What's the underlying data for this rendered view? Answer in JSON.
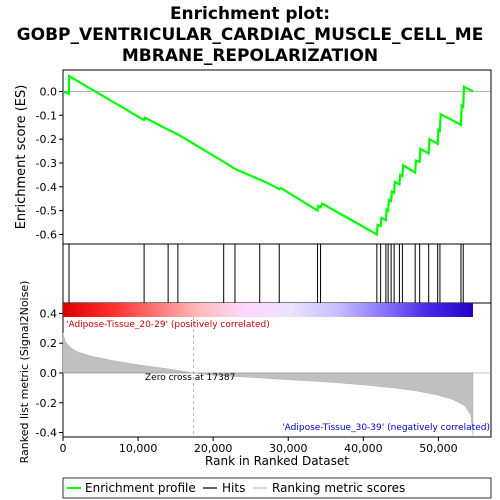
{
  "chart_data": {
    "type": "line",
    "title_lines": [
      "Enrichment plot:",
      "GOBP_VENTRICULAR_CARDIAC_MUSCLE_CELL_ME",
      "MBRANE_REPOLARIZATION"
    ],
    "es_panel": {
      "ylabel": "Enrichment score (ES)",
      "ylim": [
        -0.64,
        0.09
      ],
      "yticks": [
        0.0,
        -0.1,
        -0.2,
        -0.3,
        -0.4,
        -0.5,
        -0.6
      ],
      "ytick_labels": [
        "0.0",
        "-0.1",
        "-0.2",
        "-0.3",
        "-0.4",
        "-0.5",
        "-0.6"
      ],
      "color": "#00ff00",
      "points": [
        [
          0,
          0.0
        ],
        [
          800,
          -0.01
        ],
        [
          800,
          0.065
        ],
        [
          10800,
          -0.12
        ],
        [
          10900,
          -0.11
        ],
        [
          14000,
          -0.16
        ],
        [
          15300,
          -0.18
        ],
        [
          21400,
          -0.295
        ],
        [
          22900,
          -0.325
        ],
        [
          26200,
          -0.37
        ],
        [
          27300,
          -0.385
        ],
        [
          28800,
          -0.41
        ],
        [
          29000,
          -0.405
        ],
        [
          33900,
          -0.5
        ],
        [
          34000,
          -0.48
        ],
        [
          34300,
          -0.485
        ],
        [
          34500,
          -0.47
        ],
        [
          41800,
          -0.6
        ],
        [
          41900,
          -0.56
        ],
        [
          42300,
          -0.565
        ],
        [
          42400,
          -0.53
        ],
        [
          43000,
          -0.54
        ],
        [
          43100,
          -0.495
        ],
        [
          43300,
          -0.5
        ],
        [
          43400,
          -0.455
        ],
        [
          43700,
          -0.46
        ],
        [
          43800,
          -0.42
        ],
        [
          44100,
          -0.425
        ],
        [
          44200,
          -0.38
        ],
        [
          44800,
          -0.39
        ],
        [
          44900,
          -0.35
        ],
        [
          45200,
          -0.355
        ],
        [
          45300,
          -0.31
        ],
        [
          46900,
          -0.34
        ],
        [
          47000,
          -0.29
        ],
        [
          47500,
          -0.295
        ],
        [
          47600,
          -0.24
        ],
        [
          48700,
          -0.26
        ],
        [
          48800,
          -0.2
        ],
        [
          49900,
          -0.22
        ],
        [
          50000,
          -0.16
        ],
        [
          50200,
          -0.165
        ],
        [
          50300,
          -0.095
        ],
        [
          53000,
          -0.14
        ],
        [
          53100,
          -0.06
        ],
        [
          53300,
          -0.065
        ],
        [
          53400,
          0.02
        ],
        [
          54600,
          0.0
        ]
      ]
    },
    "hits": [
      800,
      10800,
      14000,
      15300,
      21400,
      22900,
      26200,
      28800,
      33900,
      34300,
      41800,
      42300,
      43000,
      43300,
      43700,
      44100,
      44800,
      45200,
      46900,
      47500,
      48700,
      49900,
      50200,
      53000,
      53300
    ],
    "color_bar_stops": [
      "#dd0000",
      "#ff2a2a",
      "#ff7070",
      "#ffbcbc",
      "#ffd8ff",
      "#ebe2ff",
      "#c8c0ff",
      "#8c78ff",
      "#4a28e8",
      "#2400c8"
    ],
    "metric_panel": {
      "ylabel": "Ranked list metric (Signal2Noise)",
      "ylim": [
        -0.43,
        0.47
      ],
      "yticks": [
        0.4,
        0.2,
        0.0,
        -0.2,
        -0.4
      ],
      "ytick_labels": [
        "0.4",
        "0.2",
        "0.0",
        "-0.2",
        "-0.4"
      ],
      "curve": [
        [
          0,
          0.27
        ],
        [
          300,
          0.21
        ],
        [
          1000,
          0.17
        ],
        [
          2000,
          0.14
        ],
        [
          4000,
          0.11
        ],
        [
          7000,
          0.08
        ],
        [
          10000,
          0.055
        ],
        [
          13000,
          0.035
        ],
        [
          15000,
          0.02
        ],
        [
          17387,
          0.0
        ],
        [
          20000,
          -0.015
        ],
        [
          25000,
          -0.03
        ],
        [
          30000,
          -0.045
        ],
        [
          35000,
          -0.06
        ],
        [
          40000,
          -0.08
        ],
        [
          44000,
          -0.1
        ],
        [
          47000,
          -0.12
        ],
        [
          50000,
          -0.15
        ],
        [
          52000,
          -0.18
        ],
        [
          53500,
          -0.22
        ],
        [
          54300,
          -0.28
        ],
        [
          54600,
          -0.42
        ]
      ],
      "zero_cross": 17387,
      "zero_cross_label": "Zero cross at 17387",
      "pos_label": "'Adipose-Tissue_20-29' (positively correlated)",
      "neg_label": "'Adipose-Tissue_30-39' (negatively correlated)"
    },
    "x_axis": {
      "label": "Rank in Ranked Dataset",
      "xlim": [
        0,
        57000
      ],
      "ticks": [
        0,
        10000,
        20000,
        30000,
        40000,
        50000
      ],
      "tick_labels": [
        "0",
        "10,000",
        "20,000",
        "30,000",
        "40,000",
        "50,000"
      ]
    },
    "legend": {
      "items": [
        {
          "label": "Enrichment profile",
          "color": "#00ff00"
        },
        {
          "label": "Hits",
          "color": "#000000"
        },
        {
          "label": "Ranking metric scores",
          "color": "#c0c0c0"
        }
      ]
    }
  }
}
